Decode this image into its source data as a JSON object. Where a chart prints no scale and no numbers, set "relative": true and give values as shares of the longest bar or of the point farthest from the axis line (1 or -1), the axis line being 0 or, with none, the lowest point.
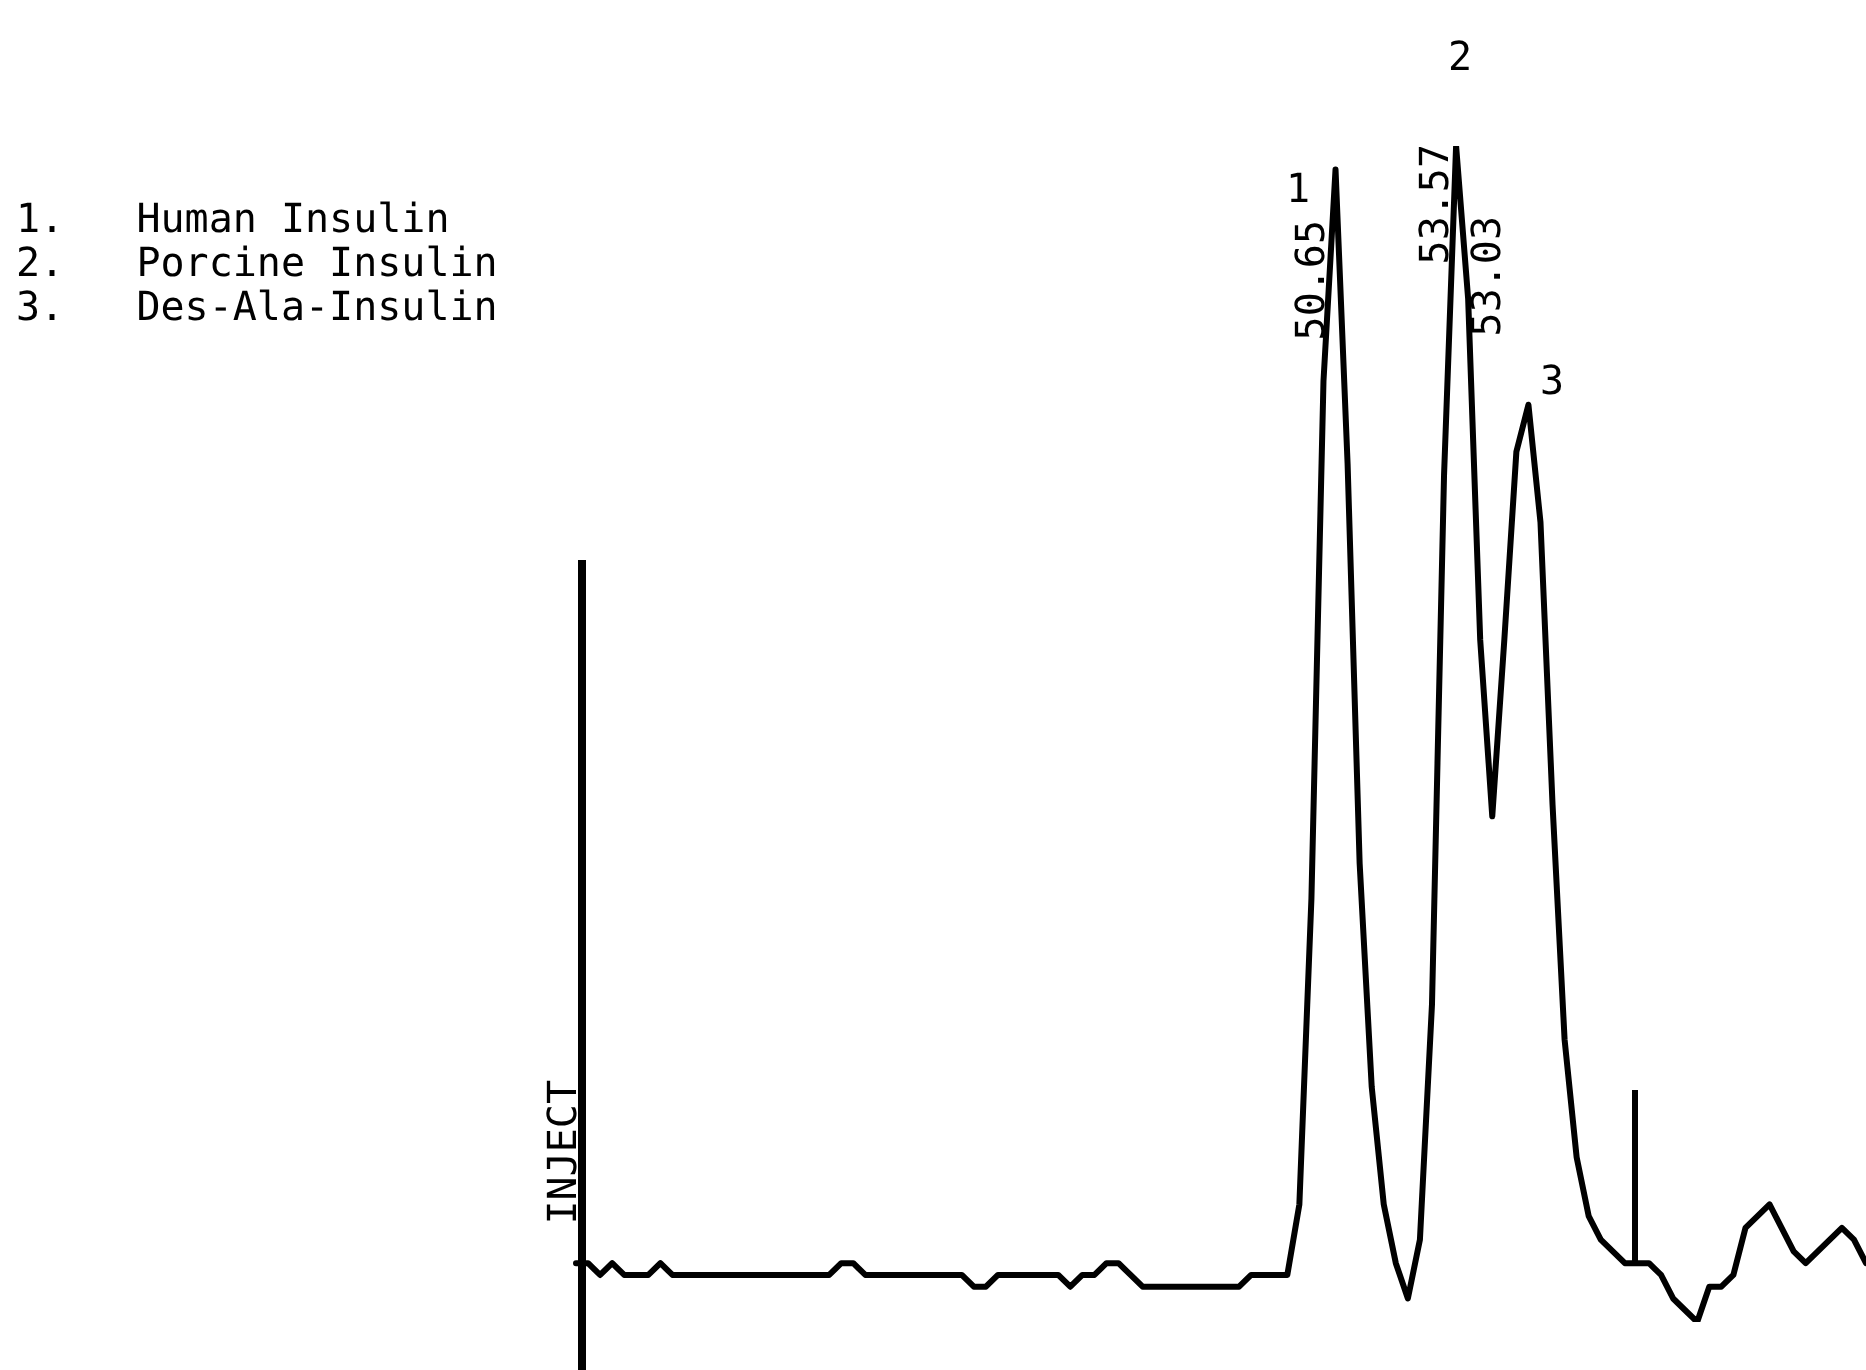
{
  "chart_data": {
    "type": "line",
    "relative": true,
    "marker": "none",
    "line_style": "solid",
    "categories": [
      null,
      null,
      null,
      null,
      null,
      null,
      null,
      null,
      null,
      null,
      null,
      null,
      null,
      null,
      null,
      null,
      null,
      null,
      null,
      null,
      null,
      null,
      null,
      null,
      null,
      null,
      null,
      null,
      null,
      null,
      null,
      null,
      null,
      null,
      null,
      null,
      null,
      null,
      null,
      null,
      null,
      null,
      null,
      null,
      null,
      null,
      null,
      null,
      null,
      null,
      null,
      null,
      null,
      null,
      null,
      null,
      null,
      null,
      null,
      null,
      null,
      null,
      null,
      null,
      null,
      null,
      null,
      null,
      null,
      null,
      null,
      null,
      null,
      null,
      null,
      null,
      null,
      null,
      null,
      null,
      null,
      null,
      null,
      null,
      null,
      null,
      null,
      null,
      null,
      null,
      null,
      null,
      null,
      null,
      null,
      null,
      null,
      null,
      null,
      null,
      null,
      null,
      null,
      null,
      null,
      null,
      null,
      null
    ],
    "series": [
      {
        "color": "#000000",
        "values": [
          0.05,
          0.05,
          0.04,
          0.05,
          0.04,
          0.04,
          0.04,
          0.05,
          0.04,
          0.04,
          0.04,
          0.04,
          0.04,
          0.04,
          0.04,
          0.04,
          0.04,
          0.04,
          0.04,
          0.04,
          0.04,
          0.04,
          0.05,
          0.05,
          0.04,
          0.04,
          0.04,
          0.04,
          0.04,
          0.04,
          0.04,
          0.04,
          0.04,
          0.03,
          0.03,
          0.04,
          0.04,
          0.04,
          0.04,
          0.04,
          0.04,
          0.03,
          0.04,
          0.04,
          0.05,
          0.05,
          0.04,
          0.03,
          0.03,
          0.03,
          0.03,
          0.03,
          0.03,
          0.03,
          0.03,
          0.03,
          0.04,
          0.04,
          0.04,
          0.04,
          0.1,
          0.36,
          0.8,
          0.98,
          0.73,
          0.39,
          0.2,
          0.1,
          0.05,
          0.02,
          0.07,
          0.27,
          0.72,
          1,
          0.87,
          0.58,
          0.43,
          0.58,
          0.74,
          0.78,
          0.68,
          0.44,
          0.24,
          0.14,
          0.09,
          0.07,
          0.06,
          0.05,
          0.05,
          0.05,
          0.04,
          0.02,
          0.01,
          0,
          0.03,
          0.03,
          0.04,
          0.08,
          0.09,
          0.1,
          0.08,
          0.06,
          0.05,
          0.06,
          0.07,
          0.08,
          0.07,
          0.05
        ]
      }
    ],
    "annotations": [
      "1.   Human Insulin",
      "2.   Porcine Insulin",
      "3.   Des-Ala-Insulin",
      "1",
      "2",
      "3",
      "50.65",
      "53.57",
      "53.03",
      "INJECT"
    ]
  }
}
